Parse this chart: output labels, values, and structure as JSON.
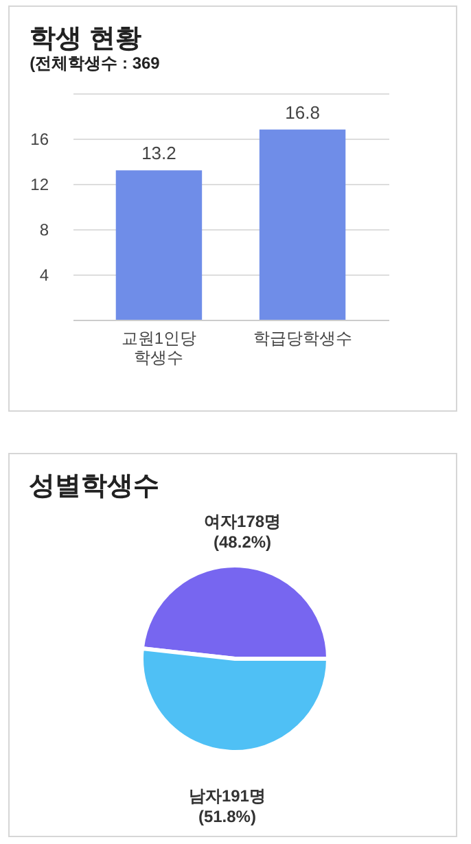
{
  "chart_data": [
    {
      "type": "bar",
      "title": "학생 현황",
      "subtitle": "(전체학생수 : 369",
      "categories": [
        "교원1인당 학생수",
        "학급당학생수"
      ],
      "values": [
        13.2,
        16.8
      ],
      "color": "#6f8de8",
      "ylim": [
        0,
        20
      ],
      "yticks": [
        {
          "value": 0,
          "label": null
        },
        4,
        8,
        12,
        16,
        {
          "value": 20,
          "label": null
        }
      ],
      "grid": "y",
      "data_labels": true
    },
    {
      "type": "pie",
      "title": "성별학생수",
      "categories": [
        "여자178명 (48.2%)",
        "남자191명 (51.8%)"
      ],
      "values": [
        178,
        191
      ],
      "colors": [
        "#7766f0",
        "#4fc0f5"
      ]
    }
  ]
}
